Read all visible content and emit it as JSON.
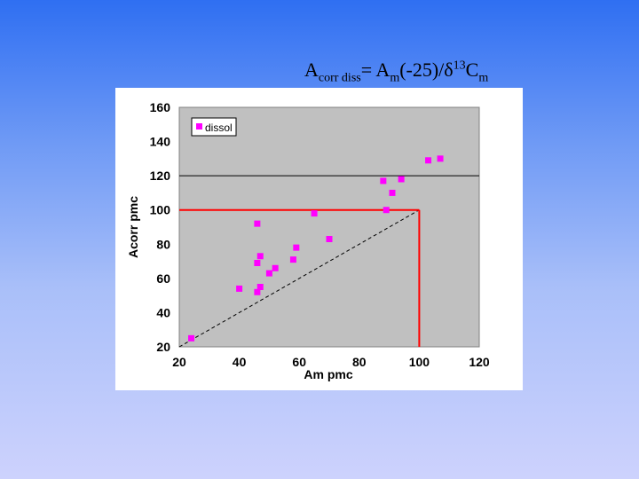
{
  "title": {
    "main": "A",
    "sub1": "corr diss",
    "mid": "= A",
    "sub2": "m",
    "mid2": "(-25)/δ",
    "sup": "13",
    "end": "C",
    "sub3": "m"
  },
  "colors": {
    "plot_bg": "#c0c0c0",
    "marker": "#ff00ff",
    "grid": "#000000",
    "red_line": "#ff0000",
    "diagonal": "#000000"
  },
  "chart_data": {
    "type": "scatter",
    "title": "",
    "xlabel": "Am pmc",
    "ylabel": "Acorr pmc",
    "xlim": [
      20,
      120
    ],
    "ylim": [
      20,
      160
    ],
    "xticks": [
      "20",
      "40",
      "60",
      "80",
      "100",
      "120"
    ],
    "yticks": [
      "20",
      "40",
      "60",
      "80",
      "100",
      "120",
      "140",
      "160"
    ],
    "grid": "horizontal line at 120",
    "legend": {
      "placement": "top-left",
      "entries": [
        "dissol"
      ]
    },
    "series": [
      {
        "name": "dissol",
        "points": [
          [
            24,
            25
          ],
          [
            40,
            54
          ],
          [
            46,
            92
          ],
          [
            46,
            69
          ],
          [
            46,
            52
          ],
          [
            47,
            55
          ],
          [
            47,
            73
          ],
          [
            50,
            63
          ],
          [
            52,
            66
          ],
          [
            58,
            71
          ],
          [
            59,
            78
          ],
          [
            65,
            98
          ],
          [
            70,
            83
          ],
          [
            88,
            117
          ],
          [
            89,
            100
          ],
          [
            91,
            110
          ],
          [
            94,
            118
          ],
          [
            103,
            129
          ],
          [
            107,
            130
          ]
        ]
      }
    ],
    "reference_lines": {
      "one_to_one_dashed": [
        [
          20,
          20
        ],
        [
          100,
          100
        ]
      ],
      "red_horizontal_y": 100,
      "red_vertical_x": 100
    }
  }
}
